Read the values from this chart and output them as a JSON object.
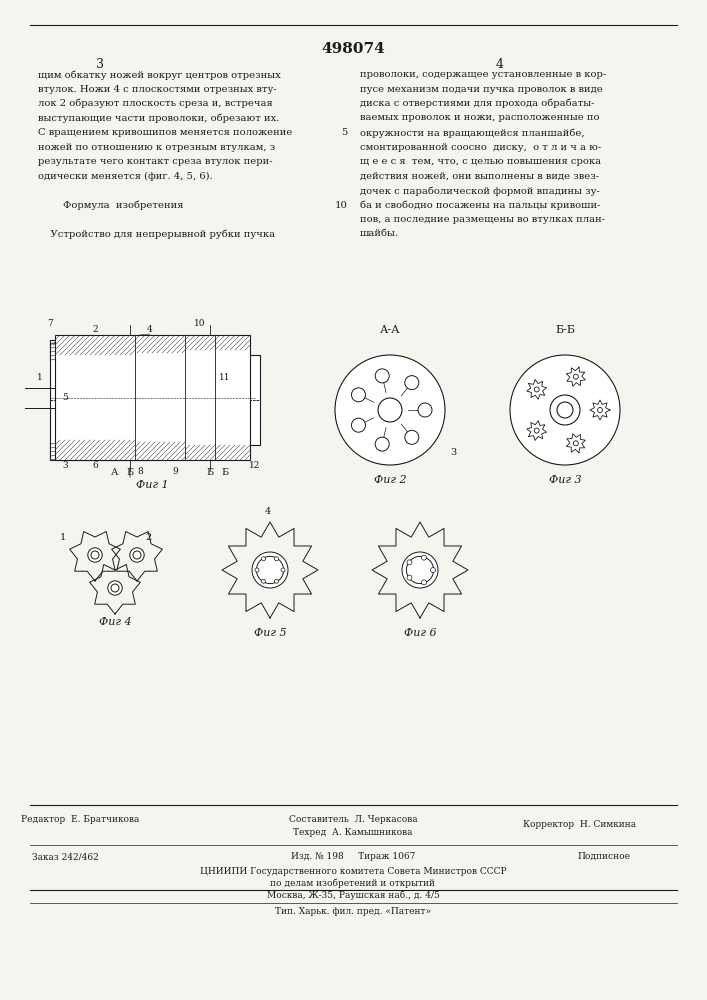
{
  "patent_number": "498074",
  "page_numbers": [
    "3",
    "4"
  ],
  "background_color": "#f5f5f0",
  "text_color": "#1a1a1a",
  "col1_text": [
    "щим обкатку ножей вокруг центров отрезных",
    "втулок. Ножи 4 с плоскостями отрезных вту-",
    "лок 2 образуют плоскость среза и, встречая",
    "выступающие части проволоки, обрезают их.",
    "С вращением кривошипов меняется положение",
    "ножей по отношению к отрезным втулкам, з",
    "результате чего контакт среза втулок пери-",
    "одически меняется (фиг. 4, 5, 6).",
    "",
    "        Формула  изобретения",
    "",
    "    Устройство для непрерывной рубки пучка"
  ],
  "col2_text": [
    "проволоки, содержащее установленные в кор-",
    "пусе механизм подачи пучка проволок в виде",
    "диска с отверстиями для прохода обрабаты-",
    "ваемых проволок и ножи, расположенные по",
    "окружности на вращающейся планшайбе,",
    "смонтированной соосно  диску,  о т л и ч а ю-",
    "щ е е с я  тем, что, с целью повышения срока",
    "действия ножей, они выполнены в виде звез-",
    "дочек с параболической формой впадины зу-",
    "ба и свободно посажены на пальцы кривоши-",
    "пов, а последние размещены во втулках план-",
    "шайбы."
  ],
  "line_numbers_col2": [
    5,
    10
  ],
  "line_numbers_values": [
    "5",
    "10"
  ],
  "figures_label_1": "Фиг 1",
  "figures_label_2": "Фиг 2",
  "figures_label_3": "Фиг 3",
  "figures_label_4": "Фиг 4",
  "figures_label_5": "Фиг 5",
  "figures_label_6": "Фиг 6",
  "fig1_section_labels": [
    "А",
    "Б",
    "А",
    "Б"
  ],
  "fig2_section_label": "А-А",
  "fig3_section_label": "Б-Б",
  "bottom_left_text": "Редактор  Е. Братчикова",
  "bottom_center_top": "Составитель  Л. Черкасова",
  "bottom_center_mid1": "Техред  А. Камышникова",
  "bottom_center_mid2": "Корректор  Н. Симкина",
  "bottom_left2": "Заказ 242/462",
  "bottom_center2": "Изд. № 198     Тираж 1067",
  "bottom_right2": "Подписное",
  "bottom_org": "ЦНИИПИ Государственного комитета Совета Министров СССР",
  "bottom_org2": "по делам изобретений и открытий",
  "bottom_addr": "Москва, Ж-35, Раушская наб., д. 4/5",
  "bottom_tip": "Тип. Харьк. фил. пред. «Патент»"
}
